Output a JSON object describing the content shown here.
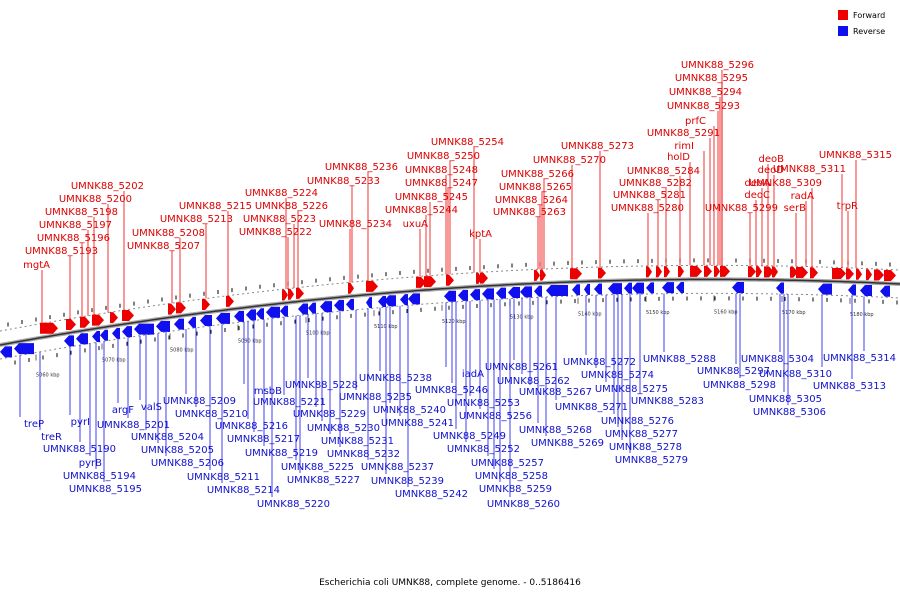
{
  "caption": "Escherichia coli UMNK88, complete genome. - 0..5186416",
  "legend": [
    {
      "label": "Forward",
      "color": "#ee0000"
    },
    {
      "label": "Reverse",
      "color": "#1010ee"
    }
  ],
  "ticks": [
    "5060 kbp",
    "5070 kbp",
    "5080 kbp",
    "5090 kbp",
    "5100 kbp",
    "5110 kbp",
    "5120 kbp",
    "5130 kbp",
    "5140 kbp",
    "5150 kbp",
    "5160 kbp",
    "5170 kbp",
    "5180 kbp"
  ],
  "forward_labels": [
    "mgtA",
    "UMNK88_5193",
    "UMNK88_5196",
    "UMNK88_5197",
    "UMNK88_5198",
    "UMNK88_5200",
    "UMNK88_5202",
    "UMNK88_5207",
    "UMNK88_5208",
    "UMNK88_5213",
    "UMNK88_5215",
    "UMNK88_5222",
    "UMNK88_5223",
    "UMNK88_5226",
    "UMNK88_5224",
    "UMNK88_5234",
    "UMNK88_5233",
    "UMNK88_5236",
    "uxuA",
    "UMNK88_5244",
    "UMNK88_5245",
    "UMNK88_5247",
    "UMNK88_5248",
    "UMNK88_5250",
    "UMNK88_5254",
    "kptA",
    "UMNK88_5263",
    "UMNK88_5264",
    "UMNK88_5265",
    "UMNK88_5266",
    "UMNK88_5270",
    "UMNK88_5273",
    "UMNK88_5280",
    "UMNK88_5281",
    "UMNK88_5282",
    "UMNK88_5284",
    "holD",
    "rimI",
    "UMNK88_5291",
    "prfC",
    "UMNK88_5293",
    "UMNK88_5294",
    "UMNK88_5295",
    "UMNK88_5296",
    "UMNK88_5299",
    "deoC",
    "deoA",
    "deoB",
    "deoD",
    "serB",
    "radA",
    "UMNK88_5309",
    "trpR",
    "UMNK88_5311",
    "UMNK88_5315"
  ],
  "reverse_labels": [
    "treP",
    "treR",
    "pyrI",
    "UMNK88_5190",
    "pyrB",
    "UMNK88_5194",
    "UMNK88_5195",
    "argF",
    "UMNK88_5201",
    "valS",
    "UMNK88_5204",
    "UMNK88_5205",
    "UMNK88_5206",
    "UMNK88_5209",
    "UMNK88_5210",
    "UMNK88_5211",
    "UMNK88_5214",
    "msbB",
    "UMNK88_5216",
    "UMNK88_5217",
    "UMNK88_5219",
    "UMNK88_5220",
    "UMNK88_5221",
    "UMNK88_5225",
    "UMNK88_5227",
    "UMNK88_5228",
    "UMNK88_5229",
    "UMNK88_5230",
    "UMNK88_5231",
    "UMNK88_5232",
    "UMNK88_5235",
    "UMNK88_5237",
    "UMNK88_5238",
    "UMNK88_5239",
    "UMNK88_5240",
    "UMNK88_5241",
    "UMNK88_5242",
    "iadA",
    "UMNK88_5246",
    "UMNK88_5249",
    "UMNK88_5252",
    "UMNK88_5253",
    "UMNK88_5256",
    "UMNK88_5257",
    "UMNK88_5258",
    "UMNK88_5259",
    "UMNK88_5260",
    "UMNK88_5261",
    "UMNK88_5262",
    "UMNK88_5267",
    "UMNK88_5268",
    "UMNK88_5269",
    "UMNK88_5271",
    "UMNK88_5272",
    "UMNK88_5274",
    "UMNK88_5275",
    "UMNK88_5276",
    "UMNK88_5277",
    "UMNK88_5278",
    "UMNK88_5279",
    "UMNK88_5283",
    "UMNK88_5288",
    "UMNK88_5297",
    "UMNK88_5298",
    "UMNK88_5304",
    "UMNK88_5305",
    "UMNK88_5306",
    "UMNK88_5310",
    "UMNK88_5313",
    "UMNK88_5314"
  ]
}
